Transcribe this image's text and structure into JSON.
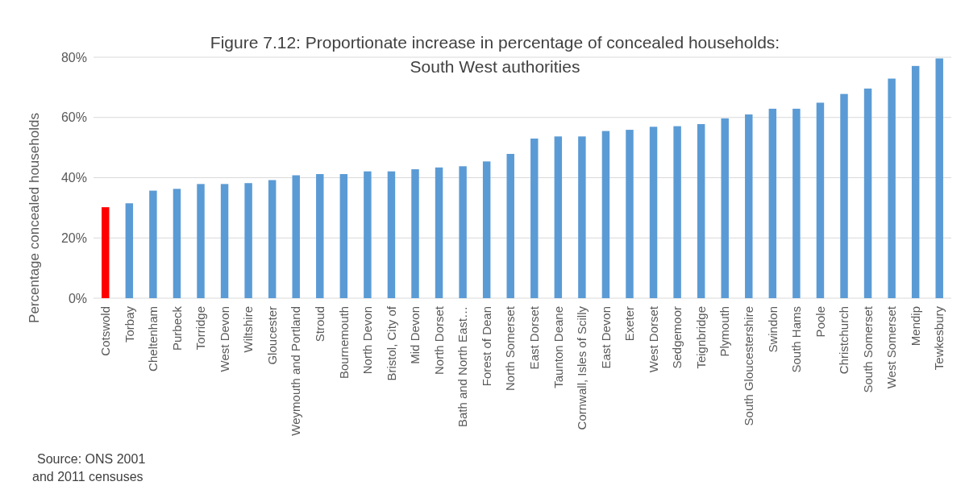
{
  "chart_data": {
    "type": "bar",
    "title": "Figure 7.12: Proportionate increase in percentage of concealed households:\nSouth West authorities",
    "ylabel": "Percentage concealed households",
    "categories": [
      "Cotswold",
      "Torbay",
      "Cheltenham",
      "Purbeck",
      "Torridge",
      "West Devon",
      "Wiltshire",
      "Gloucester",
      "Weymouth and Portland",
      "Stroud",
      "Bournemouth",
      "North Devon",
      "Bristol, City of",
      "Mid Devon",
      "North Dorset",
      "Bath and North East…",
      "Forest of Dean",
      "North Somerset",
      "East Dorset",
      "Taunton Deane",
      "Cornwall, Isles of Scilly",
      "East Devon",
      "Exeter",
      "West Dorset",
      "Sedgemoor",
      "Teignbridge",
      "Plymouth",
      "South Gloucestershire",
      "Swindon",
      "South Hams",
      "Poole",
      "Christchurch",
      "South Somerset",
      "West Somerset",
      "Mendip",
      "Tewkesbury"
    ],
    "values": [
      30.2,
      31.5,
      35.7,
      36.3,
      37.9,
      37.9,
      38.2,
      39.2,
      40.8,
      41.2,
      41.2,
      42.1,
      42.1,
      42.8,
      43.4,
      43.8,
      45.4,
      47.9,
      53.0,
      53.7,
      53.7,
      55.5,
      55.9,
      56.9,
      57.1,
      57.8,
      59.7,
      61.0,
      62.9,
      62.9,
      64.9,
      67.8,
      69.6,
      72.9,
      77.1,
      79.6
    ],
    "colors": [
      "#ff0000",
      "#5b9bd5",
      "#5b9bd5",
      "#5b9bd5",
      "#5b9bd5",
      "#5b9bd5",
      "#5b9bd5",
      "#5b9bd5",
      "#5b9bd5",
      "#5b9bd5",
      "#5b9bd5",
      "#5b9bd5",
      "#5b9bd5",
      "#5b9bd5",
      "#5b9bd5",
      "#5b9bd5",
      "#5b9bd5",
      "#5b9bd5",
      "#5b9bd5",
      "#5b9bd5",
      "#5b9bd5",
      "#5b9bd5",
      "#5b9bd5",
      "#5b9bd5",
      "#5b9bd5",
      "#5b9bd5",
      "#5b9bd5",
      "#5b9bd5",
      "#5b9bd5",
      "#5b9bd5",
      "#5b9bd5",
      "#5b9bd5",
      "#5b9bd5",
      "#5b9bd5",
      "#5b9bd5",
      "#5b9bd5"
    ],
    "ylim": [
      0,
      80
    ],
    "yticks": [
      {
        "value": 0,
        "label": "0%"
      },
      {
        "value": 20,
        "label": "20%"
      },
      {
        "value": 40,
        "label": "40%"
      },
      {
        "value": 60,
        "label": "60%"
      },
      {
        "value": 80,
        "label": "80%"
      }
    ],
    "grid": "y",
    "annotations": [
      "Source: ONS 2001\nand 2011 censuses"
    ]
  }
}
